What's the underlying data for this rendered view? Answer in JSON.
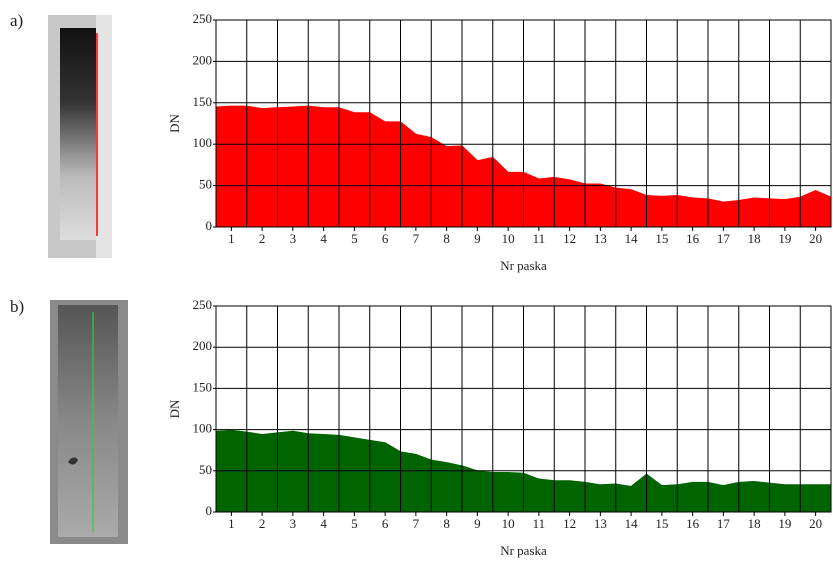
{
  "chart_data": [
    {
      "type": "area",
      "label": "a)",
      "ylabel": "DN",
      "xlabel": "Nr paska",
      "color": "#ff0000",
      "x": [
        0.5,
        1,
        1.5,
        2,
        2.5,
        3,
        3.5,
        4,
        4.5,
        5,
        5.5,
        6,
        6.5,
        7,
        7.5,
        8,
        8.5,
        9,
        9.5,
        10,
        10.5,
        11,
        11.5,
        12,
        12.5,
        13,
        13.5,
        14,
        14.5,
        15,
        15.5,
        16,
        16.5,
        17,
        17.5,
        18,
        18.5,
        19,
        19.5,
        20,
        20.5
      ],
      "values": [
        145,
        146,
        146,
        143,
        144,
        145,
        146,
        144,
        144,
        138,
        138,
        127,
        127,
        112,
        108,
        97,
        98,
        80,
        84,
        66,
        66,
        58,
        60,
        57,
        52,
        52,
        47,
        45,
        38,
        37,
        38,
        35,
        34,
        30,
        32,
        35,
        34,
        33,
        36,
        44,
        36
      ],
      "xlim": [
        0.5,
        20.5
      ],
      "xticks": [
        1,
        2,
        3,
        4,
        5,
        6,
        7,
        8,
        9,
        10,
        11,
        12,
        13,
        14,
        15,
        16,
        17,
        18,
        19,
        20
      ],
      "ylim": [
        0,
        250
      ],
      "yticks": [
        0,
        50,
        100,
        150,
        200,
        250
      ],
      "grid": true
    },
    {
      "type": "area",
      "label": "b)",
      "ylabel": "DN",
      "xlabel": "Nr paska",
      "color": "#006400",
      "x": [
        0.5,
        1,
        1.5,
        2,
        2.5,
        3,
        3.5,
        4,
        4.5,
        5,
        5.5,
        6,
        6.5,
        7,
        7.5,
        8,
        8.5,
        9,
        9.5,
        10,
        10.5,
        11,
        11.5,
        12,
        12.5,
        13,
        13.5,
        14,
        14.5,
        15,
        15.5,
        16,
        16.5,
        17,
        17.5,
        18,
        18.5,
        19,
        19.5,
        20,
        20.5
      ],
      "values": [
        98,
        99,
        97,
        94,
        96,
        98,
        95,
        94,
        93,
        90,
        87,
        84,
        73,
        70,
        63,
        60,
        56,
        50,
        48,
        48,
        47,
        40,
        38,
        38,
        36,
        33,
        34,
        31,
        46,
        32,
        33,
        36,
        36,
        32,
        36,
        37,
        35,
        33,
        33,
        33,
        33
      ],
      "xlim": [
        0.5,
        20.5
      ],
      "xticks": [
        1,
        2,
        3,
        4,
        5,
        6,
        7,
        8,
        9,
        10,
        11,
        12,
        13,
        14,
        15,
        16,
        17,
        18,
        19,
        20
      ],
      "ylim": [
        0,
        250
      ],
      "yticks": [
        0,
        50,
        100,
        150,
        200,
        250
      ],
      "grid": true
    }
  ]
}
